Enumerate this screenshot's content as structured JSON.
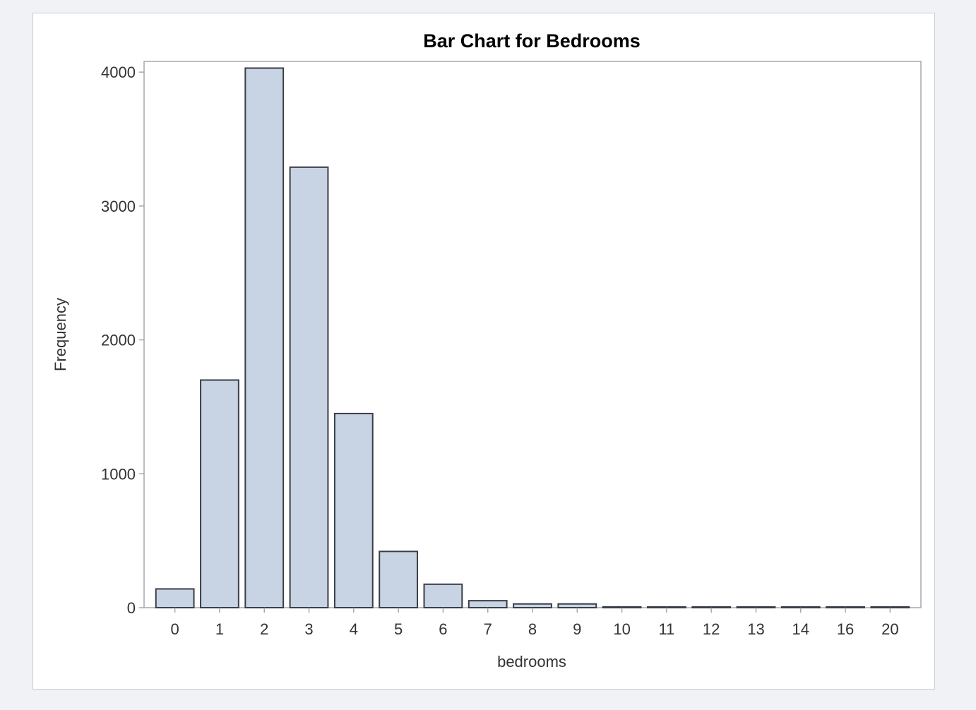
{
  "chart_data": {
    "type": "bar",
    "title": "Bar Chart for Bedrooms",
    "xlabel": "bedrooms",
    "ylabel": "Frequency",
    "categories": [
      "0",
      "1",
      "2",
      "3",
      "4",
      "5",
      "6",
      "7",
      "8",
      "9",
      "10",
      "11",
      "12",
      "13",
      "14",
      "16",
      "20"
    ],
    "values": [
      140,
      1700,
      4030,
      3290,
      1450,
      420,
      175,
      52,
      28,
      28,
      6,
      2,
      2,
      2,
      2,
      3,
      1
    ],
    "ylim": [
      0,
      4080
    ],
    "yticks": [
      0,
      1000,
      2000,
      3000,
      4000
    ],
    "ytick_labels": [
      "0",
      "1000",
      "2000",
      "3000",
      "4000"
    ],
    "grid": false,
    "colors": {
      "bar_fill": "#c8d3e3",
      "bar_stroke": "#3a3f47",
      "axis": "#a3a8b0",
      "frame_border": "#c8ccd2",
      "page_bg": "#f0f2f6"
    }
  }
}
